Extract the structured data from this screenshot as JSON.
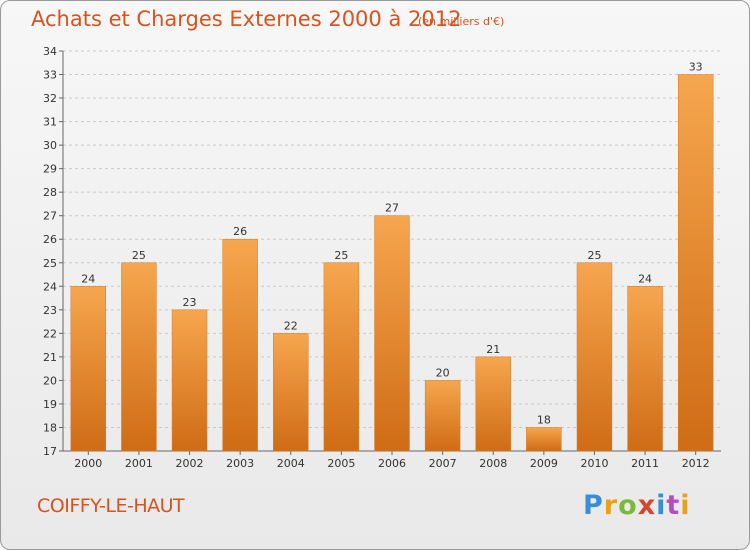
{
  "header": {
    "title": "Achats et Charges Externes 2000 à 2012",
    "subtitle": "(en milliers d'€)"
  },
  "footer": {
    "city": "COIFFY-LE-HAUT",
    "logo": "Proxiti",
    "logo_letters": [
      "P",
      "r",
      "o",
      "x",
      "i",
      "t",
      "i"
    ]
  },
  "colors": {
    "bar_light": "#f6a64f",
    "bar_dark": "#cf6c15",
    "title": "#d9531e",
    "grid": "#c9c9c9"
  },
  "chart_data": {
    "type": "bar",
    "title": "Achats et Charges Externes 2000 à 2012",
    "subtitle": "(en milliers d'€)",
    "xlabel": "",
    "ylabel": "",
    "categories": [
      "2000",
      "2001",
      "2002",
      "2003",
      "2004",
      "2005",
      "2006",
      "2007",
      "2008",
      "2009",
      "2010",
      "2011",
      "2012"
    ],
    "values": [
      24,
      25,
      23,
      26,
      22,
      25,
      27,
      20,
      21,
      18,
      25,
      24,
      33
    ],
    "ylim": [
      17,
      34
    ],
    "yticks": [
      17,
      18,
      19,
      20,
      21,
      22,
      23,
      24,
      25,
      26,
      27,
      28,
      29,
      30,
      31,
      32,
      33,
      34
    ],
    "grid": true
  }
}
